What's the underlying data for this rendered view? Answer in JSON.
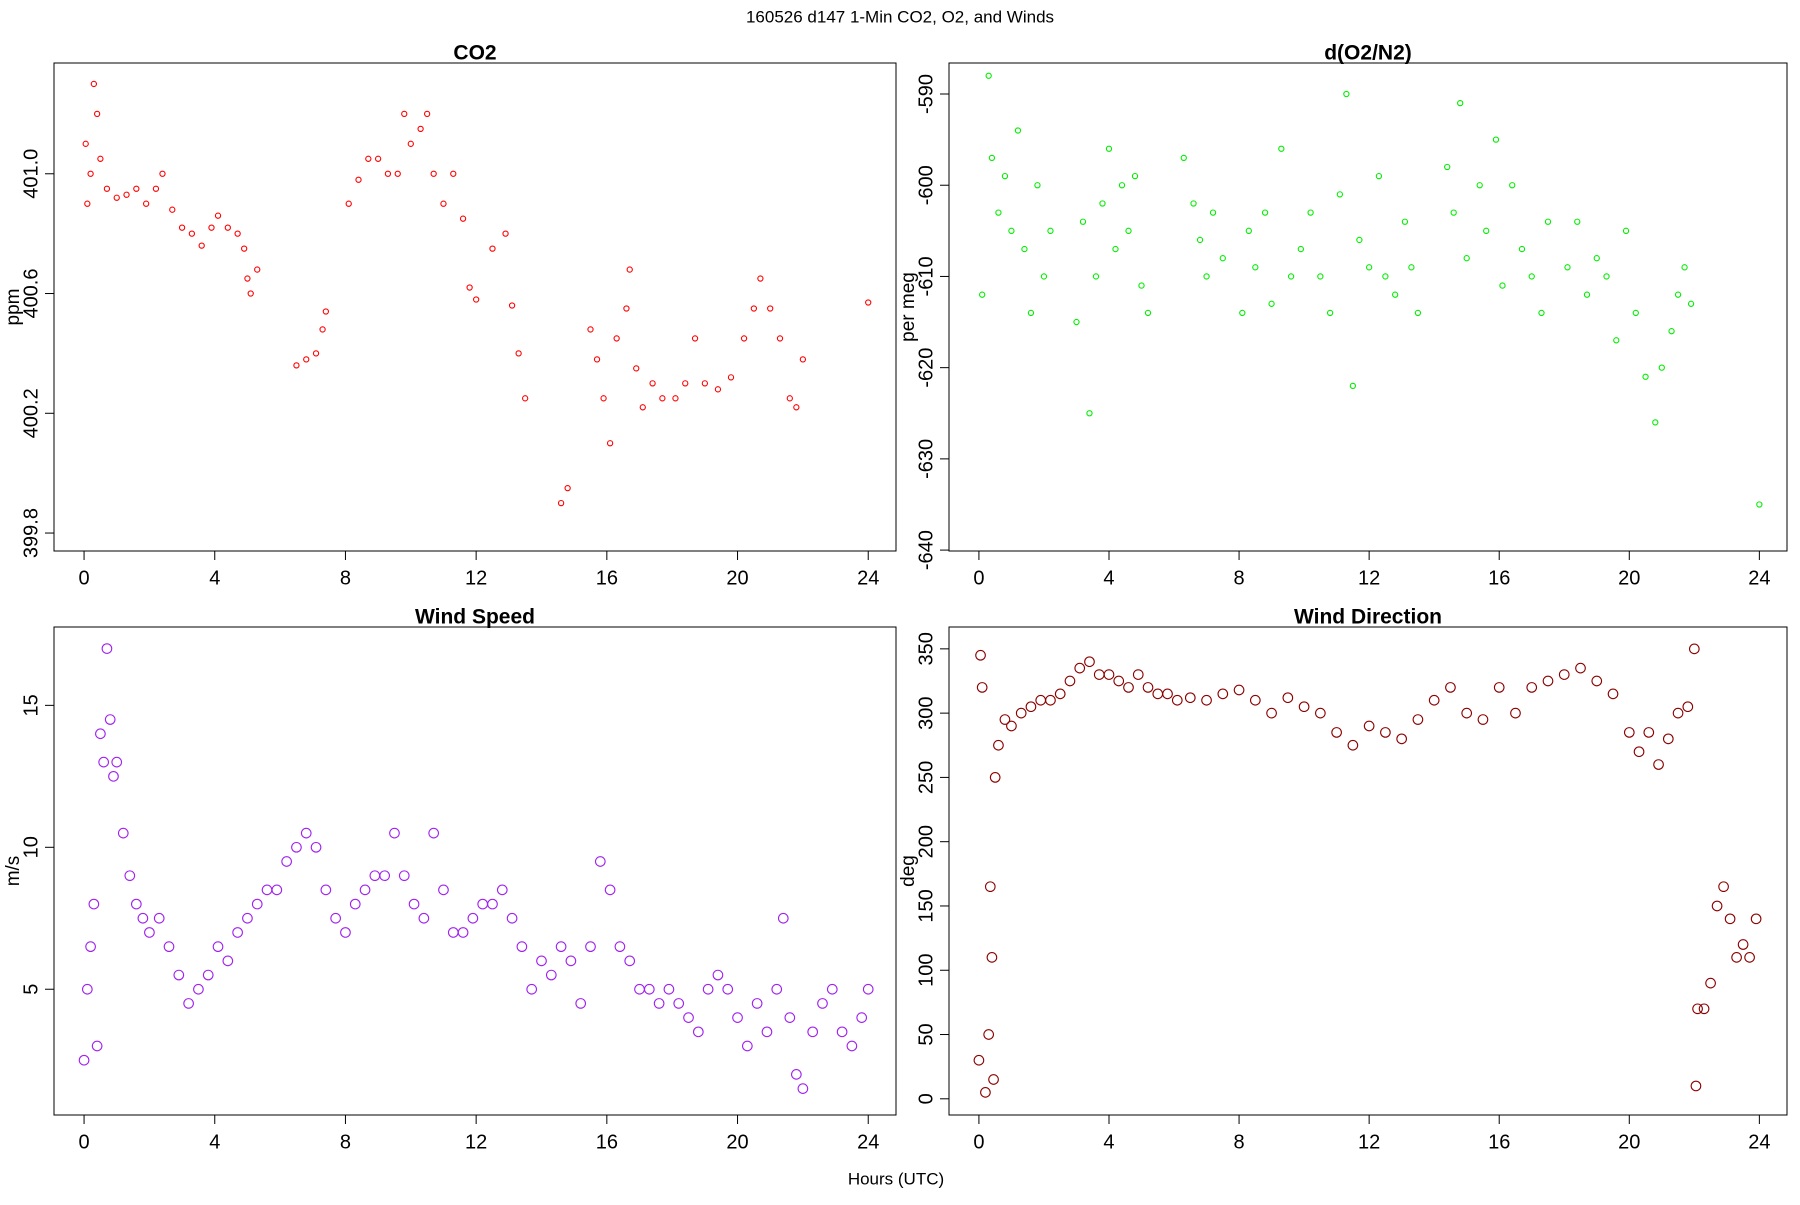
{
  "title": "160526   d147   1-Min CO2, O2, and Winds",
  "xlabel": "Hours (UTC)",
  "chart_data": [
    {
      "type": "scatter",
      "title": "CO2",
      "ylabel": "ppm",
      "color": "#ff0000",
      "xlim": [
        -0.92,
        24.85
      ],
      "xticks": [
        0,
        4,
        8,
        12,
        16,
        20,
        24
      ],
      "ylim": [
        399.74,
        401.37
      ],
      "yticks": [
        399.8,
        400.2,
        400.6,
        {
          "value": 401,
          "label": "401.0"
        }
      ],
      "x": [
        0.05,
        0.1,
        0.2,
        0.3,
        0.4,
        0.5,
        0.7,
        1.0,
        1.3,
        1.6,
        1.9,
        2.2,
        2.4,
        2.7,
        3.0,
        3.3,
        3.6,
        3.9,
        4.1,
        4.4,
        4.7,
        4.9,
        5.0,
        5.1,
        5.3,
        6.5,
        6.8,
        7.1,
        7.3,
        7.4,
        8.1,
        8.4,
        8.7,
        9.0,
        9.3,
        9.6,
        9.8,
        10.0,
        10.3,
        10.5,
        10.7,
        11.0,
        11.3,
        11.6,
        11.8,
        12.0,
        12.5,
        12.9,
        13.1,
        13.3,
        13.5,
        14.6,
        14.8,
        15.5,
        15.7,
        15.9,
        16.1,
        16.3,
        16.6,
        16.7,
        16.9,
        17.1,
        17.4,
        17.7,
        18.1,
        18.4,
        18.7,
        19.0,
        19.4,
        19.8,
        20.2,
        20.5,
        20.7,
        21.0,
        21.3,
        21.6,
        21.8,
        22.0,
        24.0
      ],
      "values": [
        401.1,
        400.9,
        401.0,
        401.3,
        401.2,
        401.05,
        400.95,
        400.92,
        400.93,
        400.95,
        400.9,
        400.95,
        401.0,
        400.88,
        400.82,
        400.8,
        400.76,
        400.82,
        400.86,
        400.82,
        400.8,
        400.75,
        400.65,
        400.6,
        400.68,
        400.36,
        400.38,
        400.4,
        400.48,
        400.54,
        400.9,
        400.98,
        401.05,
        401.05,
        401.0,
        401.0,
        401.2,
        401.1,
        401.15,
        401.2,
        401.0,
        400.9,
        401.0,
        400.85,
        400.62,
        400.58,
        400.75,
        400.8,
        400.56,
        400.4,
        400.25,
        399.9,
        399.95,
        400.48,
        400.38,
        400.25,
        400.1,
        400.45,
        400.55,
        400.68,
        400.35,
        400.22,
        400.3,
        400.25,
        400.25,
        400.3,
        400.45,
        400.3,
        400.28,
        400.32,
        400.45,
        400.55,
        400.65,
        400.55,
        400.45,
        400.25,
        400.22,
        400.38,
        400.57
      ]
    },
    {
      "type": "scatter",
      "title": "d(O2/N2)",
      "ylabel": "per meg",
      "color": "#00ee00",
      "xlim": [
        -0.92,
        24.85
      ],
      "xticks": [
        0,
        4,
        8,
        12,
        16,
        20,
        24
      ],
      "ylim": [
        -640.1,
        -586.6
      ],
      "yticks": [
        -640,
        -630,
        -620,
        -610,
        -600,
        -590
      ],
      "x": [
        0.1,
        0.3,
        0.4,
        0.6,
        0.8,
        1.0,
        1.2,
        1.4,
        1.6,
        1.8,
        2.0,
        2.2,
        3.0,
        3.2,
        3.4,
        3.6,
        3.8,
        4.0,
        4.2,
        4.4,
        4.6,
        4.8,
        5.0,
        5.2,
        6.3,
        6.6,
        6.8,
        7.0,
        7.2,
        7.5,
        8.1,
        8.3,
        8.5,
        8.8,
        9.0,
        9.3,
        9.6,
        9.9,
        10.2,
        10.5,
        10.8,
        11.1,
        11.3,
        11.5,
        11.7,
        12.0,
        12.3,
        12.5,
        12.8,
        13.1,
        13.3,
        13.5,
        14.4,
        14.6,
        14.8,
        15.0,
        15.4,
        15.6,
        15.9,
        16.1,
        16.4,
        16.7,
        17.0,
        17.3,
        17.5,
        18.1,
        18.4,
        18.7,
        19.0,
        19.3,
        19.6,
        19.9,
        20.2,
        20.5,
        20.8,
        21.0,
        21.3,
        21.5,
        21.7,
        21.9,
        24.0
      ],
      "values": [
        -612,
        -588,
        -597,
        -603,
        -599,
        -605,
        -594,
        -607,
        -614,
        -600,
        -610,
        -605,
        -615,
        -604,
        -625,
        -610,
        -602,
        -596,
        -607,
        -600,
        -605,
        -599,
        -611,
        -614,
        -597,
        -602,
        -606,
        -610,
        -603,
        -608,
        -614,
        -605,
        -609,
        -603,
        -613,
        -596,
        -610,
        -607,
        -603,
        -610,
        -614,
        -601,
        -590,
        -622,
        -606,
        -609,
        -599,
        -610,
        -612,
        -604,
        -609,
        -614,
        -598,
        -603,
        -591,
        -608,
        -600,
        -605,
        -595,
        -611,
        -600,
        -607,
        -610,
        -614,
        -604,
        -609,
        -604,
        -612,
        -608,
        -610,
        -617,
        -605,
        -614,
        -621,
        -626,
        -620,
        -616,
        -612,
        -609,
        -613,
        -635
      ]
    },
    {
      "type": "scatter",
      "title": "Wind Speed",
      "ylabel": "m/s",
      "color": "#a020f0",
      "xlim": [
        -0.92,
        24.85
      ],
      "xticks": [
        0,
        4,
        8,
        12,
        16,
        20,
        24
      ],
      "ylim": [
        0.57,
        17.76
      ],
      "yticks": [
        5,
        10,
        15
      ],
      "x": [
        0.0,
        0.1,
        0.2,
        0.3,
        0.4,
        0.5,
        0.6,
        0.7,
        0.8,
        0.9,
        1.0,
        1.2,
        1.4,
        1.6,
        1.8,
        2.0,
        2.3,
        2.6,
        2.9,
        3.2,
        3.5,
        3.8,
        4.1,
        4.4,
        4.7,
        5.0,
        5.3,
        5.6,
        5.9,
        6.2,
        6.5,
        6.8,
        7.1,
        7.4,
        7.7,
        8.0,
        8.3,
        8.6,
        8.9,
        9.2,
        9.5,
        9.8,
        10.1,
        10.4,
        10.7,
        11.0,
        11.3,
        11.6,
        11.9,
        12.2,
        12.5,
        12.8,
        13.1,
        13.4,
        13.7,
        14.0,
        14.3,
        14.6,
        14.9,
        15.2,
        15.5,
        15.8,
        16.1,
        16.4,
        16.7,
        17.0,
        17.3,
        17.6,
        17.9,
        18.2,
        18.5,
        18.8,
        19.1,
        19.4,
        19.7,
        20.0,
        20.3,
        20.6,
        20.9,
        21.2,
        21.4,
        21.6,
        21.8,
        22.0,
        22.3,
        22.6,
        22.9,
        23.2,
        23.5,
        23.8,
        24.0
      ],
      "values": [
        2.5,
        5,
        6.5,
        8,
        3,
        14,
        13,
        17,
        14.5,
        12.5,
        13,
        10.5,
        9,
        8,
        7.5,
        7,
        7.5,
        6.5,
        5.5,
        4.5,
        5,
        5.5,
        6.5,
        6,
        7,
        7.5,
        8,
        8.5,
        8.5,
        9.5,
        10,
        10.5,
        10,
        8.5,
        7.5,
        7,
        8,
        8.5,
        9,
        9,
        10.5,
        9,
        8,
        7.5,
        10.5,
        8.5,
        7,
        7,
        7.5,
        8,
        8,
        8.5,
        7.5,
        6.5,
        5,
        6,
        5.5,
        6.5,
        6,
        4.5,
        6.5,
        9.5,
        8.5,
        6.5,
        6,
        5,
        5,
        4.5,
        5,
        4.5,
        4,
        3.5,
        5,
        5.5,
        5,
        4,
        3,
        4.5,
        3.5,
        5,
        7.5,
        4,
        2,
        1.5,
        3.5,
        4.5,
        5,
        3.5,
        3,
        4,
        5
      ]
    },
    {
      "type": "scatter",
      "title": "Wind Direction",
      "ylabel": "deg",
      "color": "#8b0000",
      "xlim": [
        -0.92,
        24.85
      ],
      "xticks": [
        0,
        4,
        8,
        12,
        16,
        20,
        24
      ],
      "ylim": [
        -12.6,
        367
      ],
      "yticks": [
        0,
        50,
        100,
        150,
        200,
        250,
        300,
        350
      ],
      "x": [
        0.0,
        0.05,
        0.1,
        0.2,
        0.3,
        0.35,
        0.4,
        0.45,
        0.5,
        0.6,
        0.8,
        1.0,
        1.3,
        1.6,
        1.9,
        2.2,
        2.5,
        2.8,
        3.1,
        3.4,
        3.7,
        4.0,
        4.3,
        4.6,
        4.9,
        5.2,
        5.5,
        5.8,
        6.1,
        6.5,
        7.0,
        7.5,
        8.0,
        8.5,
        9.0,
        9.5,
        10.0,
        10.5,
        11.0,
        11.5,
        12.0,
        12.5,
        13.0,
        13.5,
        14.0,
        14.5,
        15.0,
        15.5,
        16.0,
        16.5,
        17.0,
        17.5,
        18.0,
        18.5,
        19.0,
        19.5,
        20.0,
        20.3,
        20.6,
        20.9,
        21.2,
        21.5,
        21.8,
        22.0,
        22.05,
        22.1,
        22.3,
        22.5,
        22.7,
        22.9,
        23.1,
        23.3,
        23.5,
        23.7,
        23.9
      ],
      "values": [
        30,
        345,
        320,
        5,
        50,
        165,
        110,
        15,
        250,
        275,
        295,
        290,
        300,
        305,
        310,
        310,
        315,
        325,
        335,
        340,
        330,
        330,
        325,
        320,
        330,
        320,
        315,
        315,
        310,
        312,
        310,
        315,
        318,
        310,
        300,
        312,
        305,
        300,
        285,
        275,
        290,
        285,
        280,
        295,
        310,
        320,
        300,
        295,
        320,
        300,
        320,
        325,
        330,
        335,
        325,
        315,
        285,
        270,
        285,
        260,
        280,
        300,
        305,
        350,
        10,
        70,
        70,
        90,
        150,
        165,
        140,
        110,
        120,
        110,
        140
      ]
    }
  ]
}
